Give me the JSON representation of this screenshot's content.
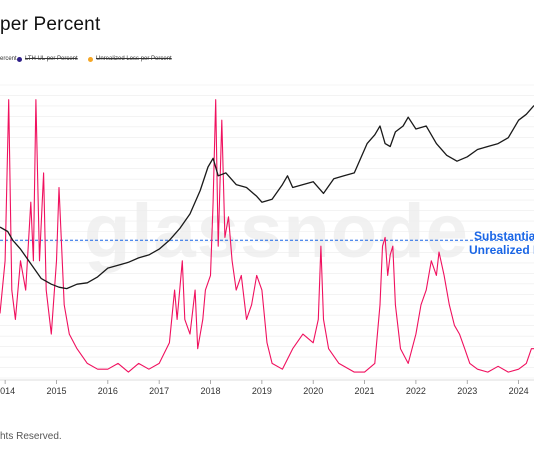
{
  "title": "per Percent",
  "legend": [
    {
      "label": "ercent",
      "color": "#1a1a1a",
      "strike": false
    },
    {
      "label": "LTH UL per Percent",
      "color": "#2e1e88",
      "strike": true
    },
    {
      "label": "Unrealized Loss per Percent",
      "color": "#f5a623",
      "strike": true
    }
  ],
  "watermark": "glassnode",
  "annotation": {
    "line1": "Substantial",
    "line2": "Unrealized L"
  },
  "footer": "hts Reserved.",
  "chart_data": {
    "type": "line",
    "x_range": [
      2013.9,
      2024.3
    ],
    "xticks": [
      {
        "label": "2014",
        "x": 2014
      },
      {
        "label": "2015",
        "x": 2015
      },
      {
        "label": "2016",
        "x": 2016
      },
      {
        "label": "2017",
        "x": 2017
      },
      {
        "label": "2018",
        "x": 2018
      },
      {
        "label": "2019",
        "x": 2019
      },
      {
        "label": "2020",
        "x": 2020
      },
      {
        "label": "2021",
        "x": 2021
      },
      {
        "label": "2022",
        "x": 2022
      },
      {
        "label": "2023",
        "x": 2023
      },
      {
        "label": "2024",
        "x": 2024
      }
    ],
    "left_axis": {
      "scale": "linear",
      "range": [
        0,
        1
      ],
      "ticks_shown": false
    },
    "right_axis": {
      "scale": "log",
      "ticks_shown": false
    },
    "grid": "horizontal",
    "threshold": {
      "value": 0.47,
      "style": "dashed",
      "color": "#1a66e6"
    },
    "series": [
      {
        "color": "#1a1a1a",
        "axis": "right",
        "points": [
          [
            2013.9,
            0.515
          ],
          [
            2014.05,
            0.5
          ],
          [
            2014.15,
            0.47
          ],
          [
            2014.3,
            0.44
          ],
          [
            2014.5,
            0.39
          ],
          [
            2014.7,
            0.34
          ],
          [
            2014.9,
            0.32
          ],
          [
            2015.05,
            0.31
          ],
          [
            2015.2,
            0.305
          ],
          [
            2015.4,
            0.32
          ],
          [
            2015.6,
            0.325
          ],
          [
            2015.8,
            0.345
          ],
          [
            2016.0,
            0.375
          ],
          [
            2016.2,
            0.385
          ],
          [
            2016.4,
            0.395
          ],
          [
            2016.6,
            0.41
          ],
          [
            2016.8,
            0.42
          ],
          [
            2017.0,
            0.44
          ],
          [
            2017.2,
            0.47
          ],
          [
            2017.4,
            0.51
          ],
          [
            2017.6,
            0.56
          ],
          [
            2017.8,
            0.64
          ],
          [
            2017.95,
            0.72
          ],
          [
            2018.05,
            0.75
          ],
          [
            2018.15,
            0.69
          ],
          [
            2018.3,
            0.7
          ],
          [
            2018.5,
            0.66
          ],
          [
            2018.7,
            0.65
          ],
          [
            2018.9,
            0.62
          ],
          [
            2019.0,
            0.6
          ],
          [
            2019.2,
            0.61
          ],
          [
            2019.4,
            0.66
          ],
          [
            2019.5,
            0.69
          ],
          [
            2019.6,
            0.65
          ],
          [
            2019.8,
            0.66
          ],
          [
            2020.0,
            0.67
          ],
          [
            2020.2,
            0.63
          ],
          [
            2020.4,
            0.68
          ],
          [
            2020.6,
            0.69
          ],
          [
            2020.8,
            0.7
          ],
          [
            2020.95,
            0.76
          ],
          [
            2021.05,
            0.8
          ],
          [
            2021.2,
            0.83
          ],
          [
            2021.3,
            0.86
          ],
          [
            2021.4,
            0.8
          ],
          [
            2021.5,
            0.79
          ],
          [
            2021.6,
            0.84
          ],
          [
            2021.75,
            0.86
          ],
          [
            2021.85,
            0.89
          ],
          [
            2022.0,
            0.85
          ],
          [
            2022.2,
            0.86
          ],
          [
            2022.4,
            0.8
          ],
          [
            2022.6,
            0.76
          ],
          [
            2022.8,
            0.74
          ],
          [
            2023.0,
            0.755
          ],
          [
            2023.2,
            0.78
          ],
          [
            2023.4,
            0.79
          ],
          [
            2023.6,
            0.8
          ],
          [
            2023.8,
            0.82
          ],
          [
            2024.0,
            0.88
          ],
          [
            2024.15,
            0.9
          ],
          [
            2024.3,
            0.93
          ]
        ]
      },
      {
        "color": "#f0115f",
        "axis": "left",
        "points": [
          [
            2013.9,
            0.22
          ],
          [
            2014.0,
            0.4
          ],
          [
            2014.07,
            0.95
          ],
          [
            2014.13,
            0.3
          ],
          [
            2014.2,
            0.2
          ],
          [
            2014.3,
            0.4
          ],
          [
            2014.4,
            0.3
          ],
          [
            2014.5,
            0.6
          ],
          [
            2014.55,
            0.4
          ],
          [
            2014.6,
            0.95
          ],
          [
            2014.67,
            0.4
          ],
          [
            2014.75,
            0.7
          ],
          [
            2014.8,
            0.3
          ],
          [
            2014.9,
            0.15
          ],
          [
            2015.0,
            0.4
          ],
          [
            2015.05,
            0.65
          ],
          [
            2015.15,
            0.25
          ],
          [
            2015.25,
            0.15
          ],
          [
            2015.4,
            0.1
          ],
          [
            2015.6,
            0.05
          ],
          [
            2015.8,
            0.03
          ],
          [
            2016.0,
            0.03
          ],
          [
            2016.2,
            0.05
          ],
          [
            2016.4,
            0.02
          ],
          [
            2016.6,
            0.05
          ],
          [
            2016.8,
            0.03
          ],
          [
            2017.0,
            0.05
          ],
          [
            2017.2,
            0.12
          ],
          [
            2017.3,
            0.3
          ],
          [
            2017.35,
            0.2
          ],
          [
            2017.45,
            0.4
          ],
          [
            2017.5,
            0.2
          ],
          [
            2017.6,
            0.15
          ],
          [
            2017.7,
            0.3
          ],
          [
            2017.75,
            0.1
          ],
          [
            2017.85,
            0.2
          ],
          [
            2017.9,
            0.3
          ],
          [
            2018.0,
            0.35
          ],
          [
            2018.05,
            0.6
          ],
          [
            2018.1,
            0.95
          ],
          [
            2018.15,
            0.45
          ],
          [
            2018.22,
            0.88
          ],
          [
            2018.28,
            0.48
          ],
          [
            2018.35,
            0.55
          ],
          [
            2018.42,
            0.4
          ],
          [
            2018.5,
            0.3
          ],
          [
            2018.6,
            0.35
          ],
          [
            2018.7,
            0.2
          ],
          [
            2018.8,
            0.25
          ],
          [
            2018.9,
            0.35
          ],
          [
            2019.0,
            0.3
          ],
          [
            2019.1,
            0.12
          ],
          [
            2019.2,
            0.05
          ],
          [
            2019.4,
            0.03
          ],
          [
            2019.6,
            0.1
          ],
          [
            2019.8,
            0.15
          ],
          [
            2020.0,
            0.12
          ],
          [
            2020.1,
            0.2
          ],
          [
            2020.15,
            0.45
          ],
          [
            2020.2,
            0.2
          ],
          [
            2020.3,
            0.1
          ],
          [
            2020.5,
            0.05
          ],
          [
            2020.8,
            0.02
          ],
          [
            2021.0,
            0.02
          ],
          [
            2021.2,
            0.05
          ],
          [
            2021.3,
            0.25
          ],
          [
            2021.35,
            0.45
          ],
          [
            2021.4,
            0.48
          ],
          [
            2021.45,
            0.35
          ],
          [
            2021.5,
            0.42
          ],
          [
            2021.55,
            0.45
          ],
          [
            2021.6,
            0.25
          ],
          [
            2021.7,
            0.1
          ],
          [
            2021.85,
            0.05
          ],
          [
            2022.0,
            0.15
          ],
          [
            2022.1,
            0.25
          ],
          [
            2022.2,
            0.3
          ],
          [
            2022.3,
            0.4
          ],
          [
            2022.4,
            0.35
          ],
          [
            2022.45,
            0.43
          ],
          [
            2022.55,
            0.35
          ],
          [
            2022.65,
            0.25
          ],
          [
            2022.75,
            0.18
          ],
          [
            2022.85,
            0.15
          ],
          [
            2022.95,
            0.1
          ],
          [
            2023.05,
            0.05
          ],
          [
            2023.2,
            0.03
          ],
          [
            2023.4,
            0.02
          ],
          [
            2023.6,
            0.04
          ],
          [
            2023.8,
            0.02
          ],
          [
            2024.0,
            0.03
          ],
          [
            2024.15,
            0.05
          ],
          [
            2024.25,
            0.1
          ],
          [
            2024.3,
            0.1
          ]
        ]
      }
    ]
  }
}
